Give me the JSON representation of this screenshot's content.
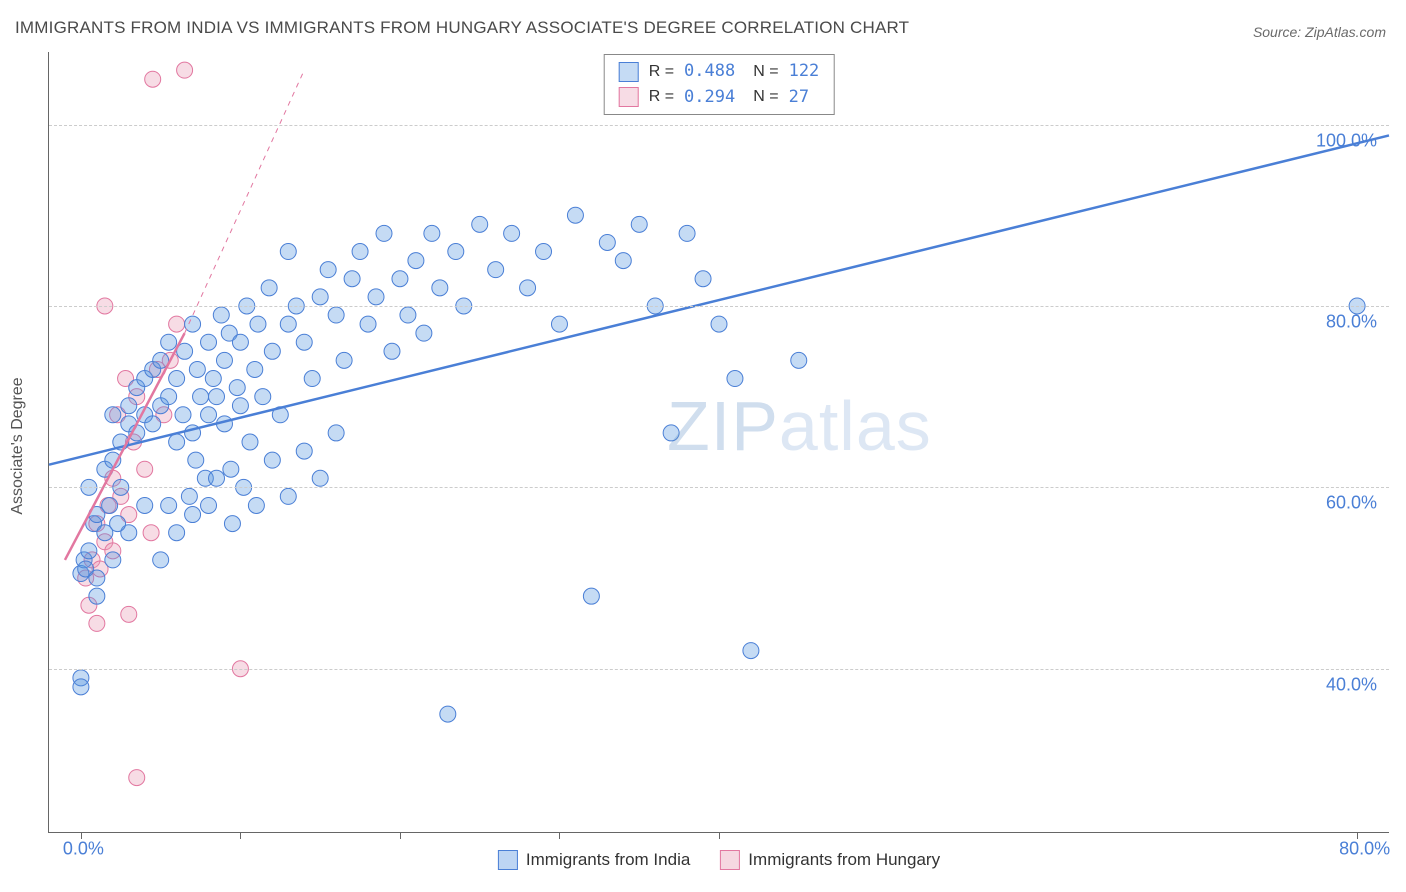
{
  "title": "IMMIGRANTS FROM INDIA VS IMMIGRANTS FROM HUNGARY ASSOCIATE'S DEGREE CORRELATION CHART",
  "source": "Source: ZipAtlas.com",
  "y_axis_label": "Associate's Degree",
  "watermark": {
    "part1": "ZIP",
    "part2": "atlas"
  },
  "chart": {
    "type": "scatter",
    "background_color": "#ffffff",
    "grid_color": "#cccccc",
    "axis_color": "#666666",
    "xlim": [
      -2,
      82
    ],
    "ylim": [
      22,
      108
    ],
    "x_ticks": [
      0,
      10,
      20,
      30,
      40,
      80
    ],
    "x_tick_labels": {
      "0": "0.0%",
      "80": "80.0%"
    },
    "y_gridlines": [
      40,
      60,
      80,
      100
    ],
    "y_tick_labels": {
      "40": "40.0%",
      "60": "60.0%",
      "80": "80.0%",
      "100": "100.0%"
    },
    "marker_radius": 8,
    "marker_opacity": 0.45,
    "trend_line_width": 2.5
  },
  "series": [
    {
      "id": "india",
      "label": "Immigrants from India",
      "color": "#5a97e0",
      "fill": "rgba(90,151,224,0.35)",
      "stroke": "#4a7fd6",
      "R": "0.488",
      "N": "122",
      "trend": {
        "x1": -2,
        "y1": 62.5,
        "x2": 82,
        "y2": 98.8,
        "dashed": false
      },
      "points": [
        [
          0,
          50.5
        ],
        [
          0.2,
          52
        ],
        [
          0.3,
          51
        ],
        [
          0.5,
          53
        ],
        [
          0.5,
          60
        ],
        [
          0.8,
          56
        ],
        [
          1,
          57
        ],
        [
          1,
          50
        ],
        [
          1,
          48
        ],
        [
          1.5,
          55
        ],
        [
          1.5,
          62
        ],
        [
          2,
          63
        ],
        [
          2,
          68
        ],
        [
          2,
          52
        ],
        [
          2.5,
          60
        ],
        [
          2.5,
          65
        ],
        [
          3,
          67
        ],
        [
          3,
          69
        ],
        [
          3.5,
          66
        ],
        [
          3.5,
          71
        ],
        [
          4,
          68
        ],
        [
          4,
          72
        ],
        [
          4.5,
          73
        ],
        [
          4.5,
          67
        ],
        [
          5,
          69
        ],
        [
          5,
          74
        ],
        [
          5.5,
          70
        ],
        [
          5.5,
          76
        ],
        [
          6,
          65
        ],
        [
          6,
          72
        ],
        [
          6.4,
          68
        ],
        [
          6.5,
          75
        ],
        [
          7,
          78
        ],
        [
          7,
          66
        ],
        [
          7.3,
          73
        ],
        [
          7.5,
          70
        ],
        [
          7.8,
          61
        ],
        [
          8,
          76
        ],
        [
          8,
          68
        ],
        [
          8.3,
          72
        ],
        [
          8.5,
          70
        ],
        [
          8.8,
          79
        ],
        [
          9,
          67
        ],
        [
          9,
          74
        ],
        [
          9.3,
          77
        ],
        [
          9.5,
          56
        ],
        [
          9.8,
          71
        ],
        [
          10,
          76
        ],
        [
          10,
          69
        ],
        [
          10.4,
          80
        ],
        [
          10.6,
          65
        ],
        [
          10.9,
          73
        ],
        [
          11.1,
          78
        ],
        [
          11.4,
          70
        ],
        [
          11.8,
          82
        ],
        [
          12,
          75
        ],
        [
          12.5,
          68
        ],
        [
          13,
          86
        ],
        [
          13,
          78
        ],
        [
          13.5,
          80
        ],
        [
          14,
          76
        ],
        [
          14.5,
          72
        ],
        [
          15,
          81
        ],
        [
          15.5,
          84
        ],
        [
          16,
          79
        ],
        [
          16.5,
          74
        ],
        [
          17,
          83
        ],
        [
          17.5,
          86
        ],
        [
          18,
          78
        ],
        [
          18.5,
          81
        ],
        [
          19,
          88
        ],
        [
          19.5,
          75
        ],
        [
          20,
          83
        ],
        [
          20.5,
          79
        ],
        [
          21,
          85
        ],
        [
          21.5,
          77
        ],
        [
          22,
          88
        ],
        [
          22.5,
          82
        ],
        [
          23,
          35
        ],
        [
          23.5,
          86
        ],
        [
          24,
          80
        ],
        [
          25,
          89
        ],
        [
          26,
          84
        ],
        [
          27,
          88
        ],
        [
          28,
          82
        ],
        [
          29,
          86
        ],
        [
          30,
          78
        ],
        [
          31,
          90
        ],
        [
          32,
          48
        ],
        [
          33,
          87
        ],
        [
          34,
          85
        ],
        [
          35,
          89
        ],
        [
          36,
          80
        ],
        [
          37,
          66
        ],
        [
          38,
          88
        ],
        [
          39,
          83
        ],
        [
          40,
          78
        ],
        [
          41,
          72
        ],
        [
          42,
          42
        ],
        [
          45,
          74
        ],
        [
          80,
          80
        ],
        [
          0,
          39
        ],
        [
          0,
          38
        ],
        [
          5.5,
          58
        ],
        [
          6.8,
          59
        ],
        [
          7.2,
          63
        ],
        [
          8.5,
          61
        ],
        [
          9.4,
          62
        ],
        [
          10.2,
          60
        ],
        [
          11,
          58
        ],
        [
          12,
          63
        ],
        [
          13,
          59
        ],
        [
          14,
          64
        ],
        [
          15,
          61
        ],
        [
          16,
          66
        ],
        [
          5,
          52
        ],
        [
          6,
          55
        ],
        [
          7,
          57
        ],
        [
          8,
          58
        ],
        [
          4,
          58
        ],
        [
          3,
          55
        ],
        [
          2.3,
          56
        ],
        [
          1.8,
          58
        ]
      ]
    },
    {
      "id": "hungary",
      "label": "Immigrants from Hungary",
      "color": "#e89bb4",
      "fill": "rgba(232,155,180,0.35)",
      "stroke": "#e277a0",
      "R": "0.294",
      "N": " 27",
      "trend": {
        "x1": -1,
        "y1": 52,
        "x2": 6.5,
        "y2": 77,
        "dashed": false
      },
      "trend_ext": {
        "x1": 6.5,
        "y1": 77,
        "x2": 14,
        "y2": 106,
        "dashed": true
      },
      "points": [
        [
          0.3,
          50
        ],
        [
          0.5,
          47
        ],
        [
          0.7,
          52
        ],
        [
          1,
          45
        ],
        [
          1,
          56
        ],
        [
          1.2,
          51
        ],
        [
          1.5,
          54
        ],
        [
          1.7,
          58
        ],
        [
          2,
          61
        ],
        [
          2,
          53
        ],
        [
          2.3,
          68
        ],
        [
          2.5,
          59
        ],
        [
          2.8,
          72
        ],
        [
          3,
          57
        ],
        [
          3.3,
          65
        ],
        [
          3.5,
          70
        ],
        [
          4,
          62
        ],
        [
          4.4,
          55
        ],
        [
          4.8,
          73
        ],
        [
          5.2,
          68
        ],
        [
          5.6,
          74
        ],
        [
          6,
          78
        ],
        [
          1.5,
          80
        ],
        [
          3.5,
          28
        ],
        [
          4.5,
          105
        ],
        [
          6.5,
          106
        ],
        [
          3,
          46
        ],
        [
          10,
          40
        ]
      ]
    }
  ],
  "legend_bottom": [
    {
      "label": "Immigrants from India",
      "fill": "rgba(90,151,224,0.4)",
      "stroke": "#4a7fd6"
    },
    {
      "label": "Immigrants from Hungary",
      "fill": "rgba(232,155,180,0.4)",
      "stroke": "#e277a0"
    }
  ]
}
